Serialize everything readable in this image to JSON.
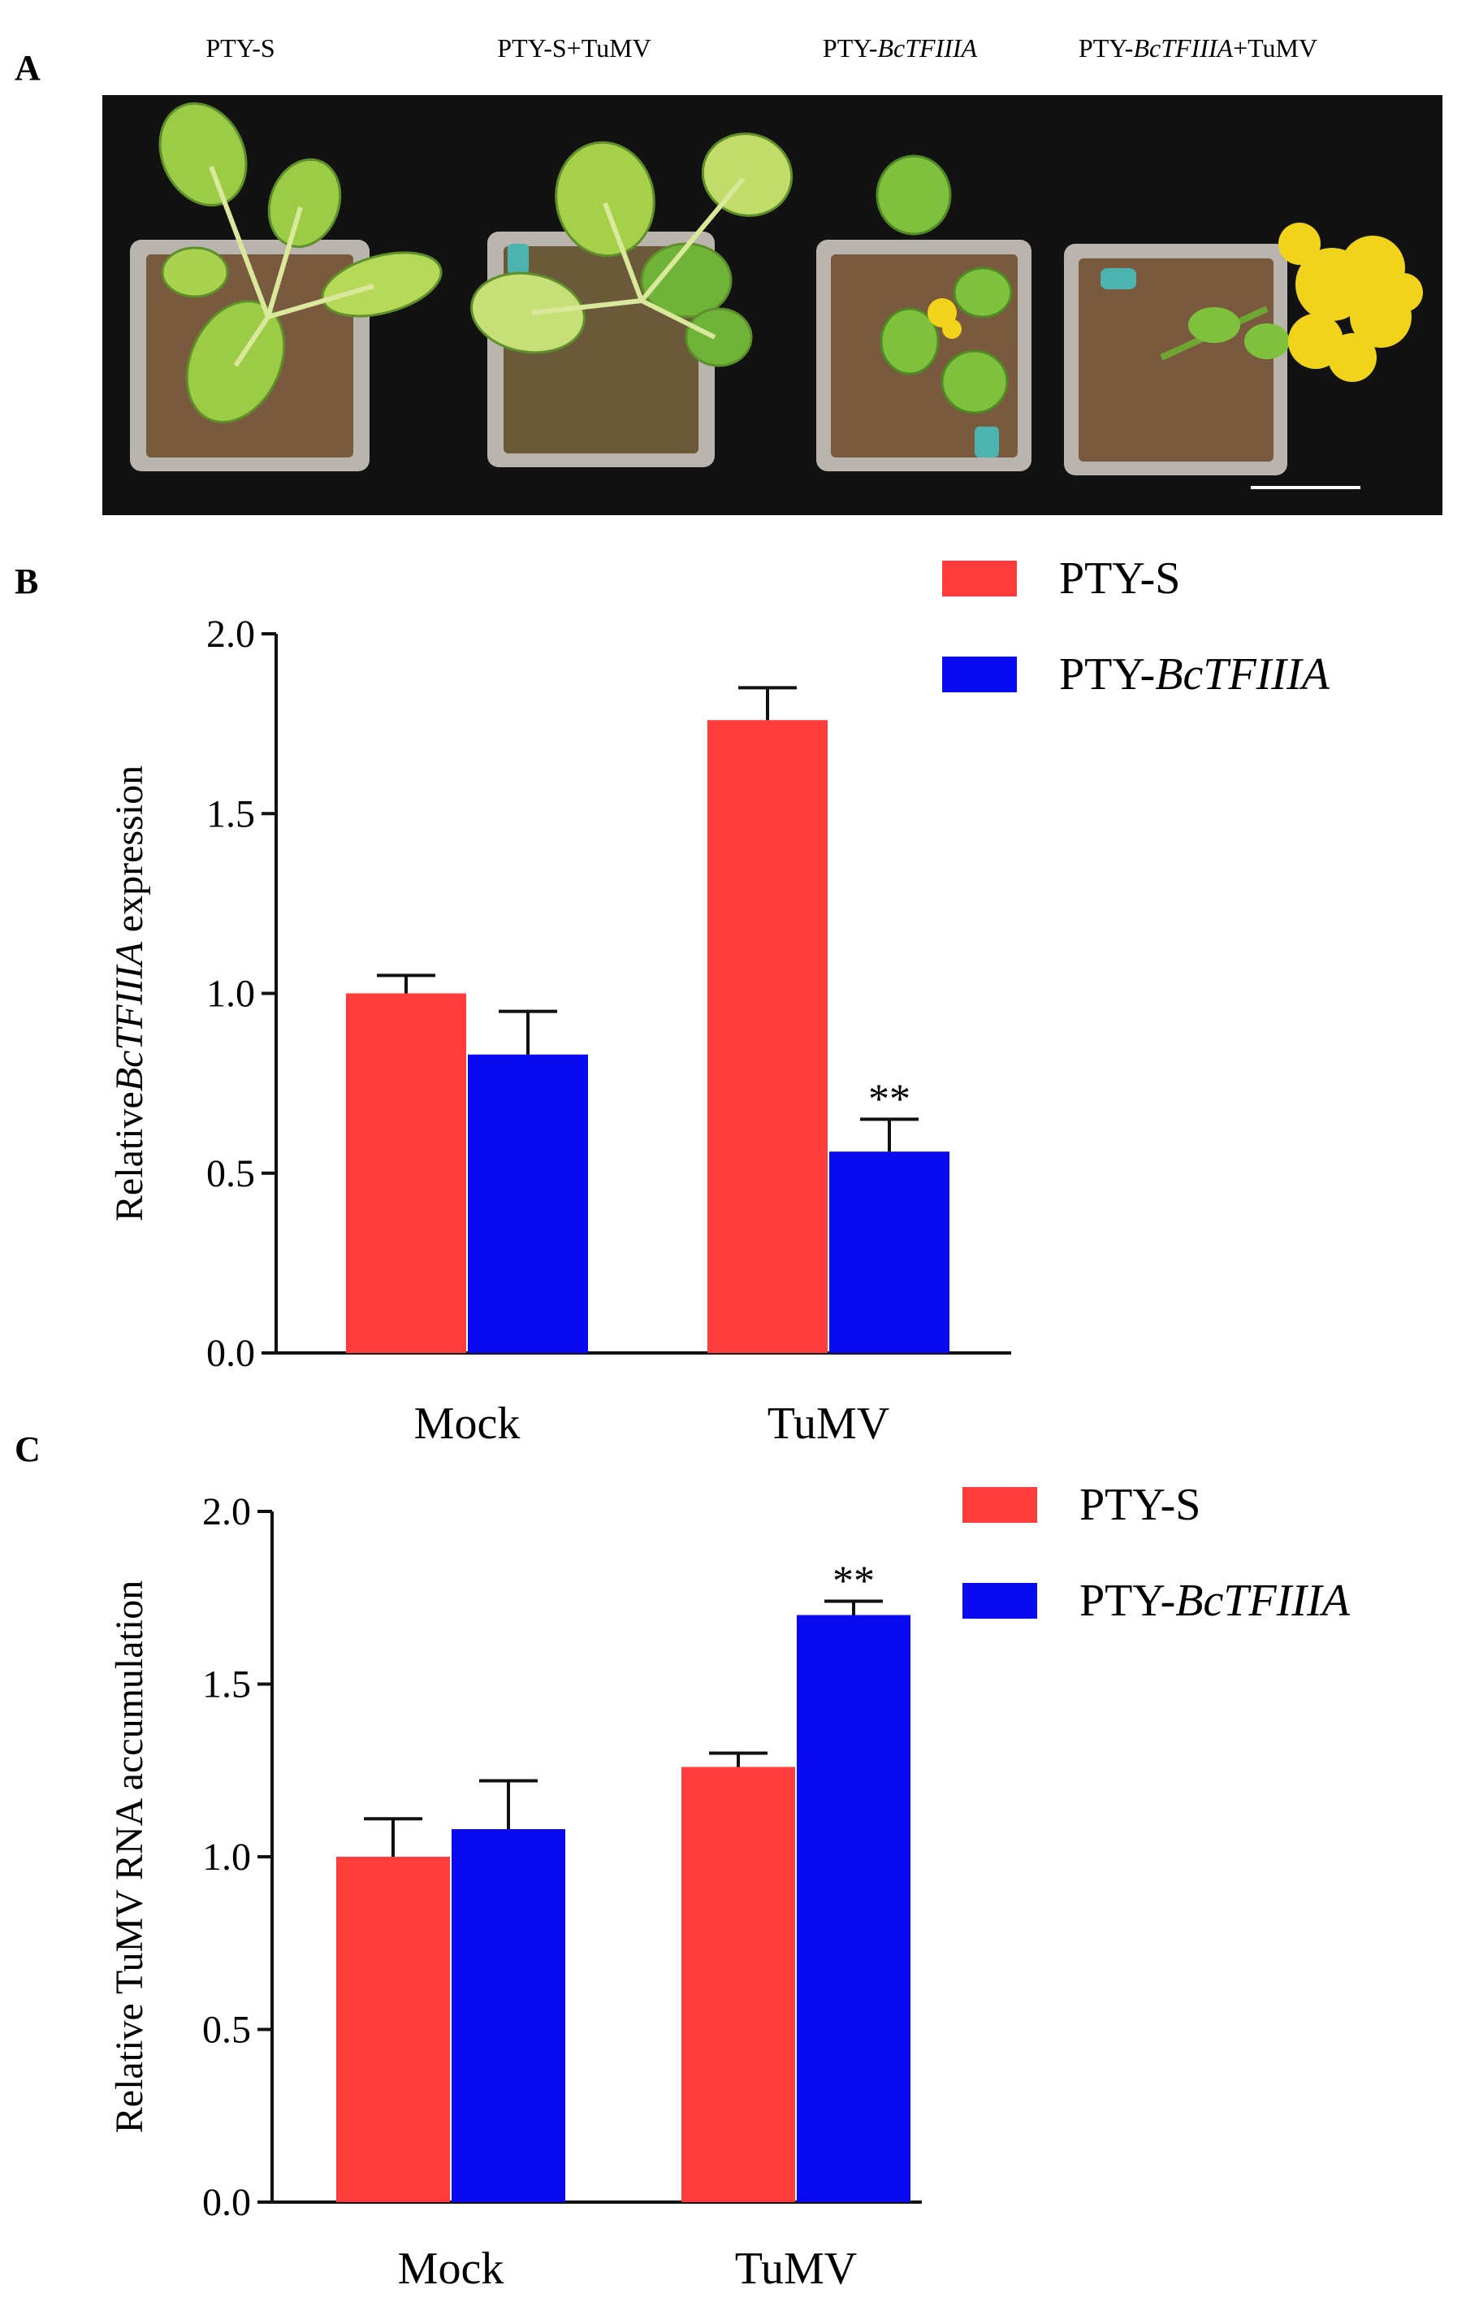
{
  "figure": {
    "panel_a": {
      "letter": "A",
      "labels": [
        {
          "prefix": "PTY-",
          "gene": "",
          "suffix": "S"
        },
        {
          "prefix": "PTY-",
          "gene": "",
          "suffix": "S+TuMV"
        },
        {
          "prefix": "PTY-",
          "gene": "BcTFIIIA",
          "suffix": ""
        },
        {
          "prefix": "PTY-",
          "gene": "BcTFIIIA",
          "suffix": "+TuMV"
        }
      ],
      "colors": {
        "background": "#121212",
        "soil": "#7a5a3e",
        "pot": "#b9b4ad",
        "leaf": "#8cc63f",
        "leaf_pale": "#c8de6e",
        "flower": "#f2d31b"
      }
    },
    "panel_b": {
      "letter": "B"
    },
    "panel_c": {
      "letter": "C"
    }
  },
  "chart_data": [
    {
      "type": "bar",
      "panel": "B",
      "categories": [
        "Mock",
        "TuMV"
      ],
      "series": [
        {
          "name": "PTY-S",
          "name_prefix": "PTY-",
          "name_gene": "",
          "name_suffix": "S",
          "color": "#ff3b3b",
          "values": [
            1.0,
            1.76
          ],
          "errors": [
            0.05,
            0.09
          ],
          "significance": [
            "",
            ""
          ]
        },
        {
          "name": "PTY-BcTFIIIA",
          "name_prefix": "PTY-",
          "name_gene": "BcTFIIIA",
          "name_suffix": "",
          "color": "#0a0af0",
          "values": [
            0.83,
            0.56
          ],
          "errors": [
            0.12,
            0.09
          ],
          "significance": [
            "",
            "**"
          ]
        }
      ],
      "ylabel_prefix": "Relative",
      "ylabel_gene": "BcTFIIIA",
      "ylabel_suffix": " expression",
      "ylim": [
        0,
        2.0
      ],
      "yticks": [
        "0.0",
        "0.5",
        "1.0",
        "1.5",
        "2.0"
      ],
      "ytick_values": [
        0,
        0.5,
        1.0,
        1.5,
        2.0
      ],
      "legend_position": "top-right",
      "grid": false
    },
    {
      "type": "bar",
      "panel": "C",
      "categories": [
        "Mock",
        "TuMV"
      ],
      "series": [
        {
          "name": "PTY-S",
          "name_prefix": "PTY-",
          "name_gene": "",
          "name_suffix": "S",
          "color": "#ff3b3b",
          "values": [
            1.0,
            1.26
          ],
          "errors": [
            0.11,
            0.04
          ],
          "significance": [
            "",
            ""
          ]
        },
        {
          "name": "PTY-BcTFIIIA",
          "name_prefix": "PTY-",
          "name_gene": "BcTFIIIA",
          "name_suffix": "",
          "color": "#0a0af0",
          "values": [
            1.08,
            1.7
          ],
          "errors": [
            0.14,
            0.04
          ],
          "significance": [
            "",
            "**"
          ]
        }
      ],
      "ylabel_prefix": "Relative TuMV RNA accumulation",
      "ylabel_gene": "",
      "ylabel_suffix": "",
      "ylim": [
        0,
        2.0
      ],
      "yticks": [
        "0.0",
        "0.5",
        "1.0",
        "1.5",
        "2.0"
      ],
      "ytick_values": [
        0,
        0.5,
        1.0,
        1.5,
        2.0
      ],
      "legend_position": "top-right",
      "grid": false
    }
  ]
}
